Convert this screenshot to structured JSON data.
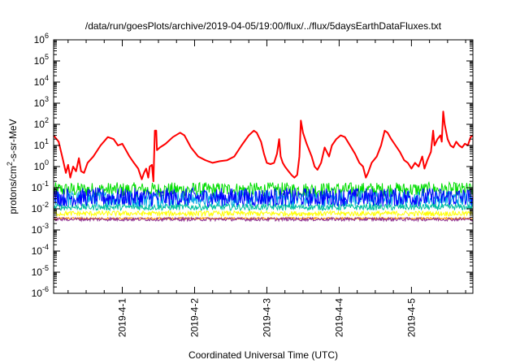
{
  "chart_data": {
    "type": "line",
    "title": "/data/run/goesPlots/archive/2019-04-05/19:00/flux/../flux/5daysEarthDataFluxes.txt",
    "xlabel": "Coordinated Universal Time (UTC)",
    "ylabel_base": "protons/cm",
    "ylabel_sup": "2",
    "ylabel_rest": "-s-sr-MeV",
    "log_y": true,
    "grid": false,
    "legend": "none",
    "xlim_days": [
      -0.95,
      4.85
    ],
    "ylim": [
      1e-06,
      1000000.0
    ],
    "x_ticks": [
      {
        "day": 0,
        "label": "2019-4-1"
      },
      {
        "day": 1,
        "label": "2019-4-2"
      },
      {
        "day": 2,
        "label": "2019-4-3"
      },
      {
        "day": 3,
        "label": "2019-4-4"
      },
      {
        "day": 4,
        "label": "2019-4-5"
      }
    ],
    "y_ticks": [
      {
        "exp": -6,
        "label": "10",
        "sup": "-6"
      },
      {
        "exp": -5,
        "label": "10",
        "sup": "-5"
      },
      {
        "exp": -4,
        "label": "10",
        "sup": "-4"
      },
      {
        "exp": -3,
        "label": "10",
        "sup": "-3"
      },
      {
        "exp": -2,
        "label": "10",
        "sup": "-2"
      },
      {
        "exp": -1,
        "label": "10",
        "sup": "-1"
      },
      {
        "exp": 0,
        "label": "10",
        "sup": "0"
      },
      {
        "exp": 1,
        "label": "10",
        "sup": "1"
      },
      {
        "exp": 2,
        "label": "10",
        "sup": "2"
      },
      {
        "exp": 3,
        "label": "10",
        "sup": "3"
      },
      {
        "exp": 4,
        "label": "10",
        "sup": "4"
      },
      {
        "exp": 5,
        "label": "10",
        "sup": "5"
      },
      {
        "exp": 6,
        "label": "10",
        "sup": "6"
      }
    ],
    "series": [
      {
        "color": "#00dd00",
        "kind": "noisy",
        "center": 0.08,
        "spread_decades": 0.35
      },
      {
        "color": "#00a6e6",
        "kind": "noisy",
        "center": 0.03,
        "spread_decades": 0.4
      },
      {
        "color": "#0000ff",
        "kind": "noisy",
        "center": 0.035,
        "spread_decades": 0.45
      },
      {
        "color": "#00c0a0",
        "kind": "noisy",
        "center": 0.012,
        "spread_decades": 0.15
      },
      {
        "color": "#ffff00",
        "kind": "noisy",
        "center": 0.006,
        "spread_decades": 0.12
      },
      {
        "color": "#ff9900",
        "kind": "noisy",
        "center": 0.0035,
        "spread_decades": 0.05
      },
      {
        "color": "#8e2a8e",
        "kind": "noisy",
        "center": 0.0032,
        "spread_decades": 0.08
      },
      {
        "color": "#ff0000",
        "kind": "line",
        "points": [
          [
            -0.95,
            30
          ],
          [
            -0.88,
            15
          ],
          [
            -0.82,
            2
          ],
          [
            -0.78,
            0.5
          ],
          [
            -0.75,
            1.2
          ],
          [
            -0.72,
            0.3
          ],
          [
            -0.68,
            1.0
          ],
          [
            -0.64,
            0.6
          ],
          [
            -0.6,
            2.5
          ],
          [
            -0.57,
            0.6
          ],
          [
            -0.53,
            0.5
          ],
          [
            -0.48,
            1.5
          ],
          [
            -0.4,
            3
          ],
          [
            -0.3,
            10
          ],
          [
            -0.2,
            25
          ],
          [
            -0.12,
            20
          ],
          [
            -0.06,
            10
          ],
          [
            0.0,
            12
          ],
          [
            0.05,
            6
          ],
          [
            0.1,
            3
          ],
          [
            0.16,
            1.5
          ],
          [
            0.22,
            0.8
          ],
          [
            0.27,
            0.25
          ],
          [
            0.3,
            0.5
          ],
          [
            0.33,
            0.8
          ],
          [
            0.36,
            0.3
          ],
          [
            0.38,
            1.0
          ],
          [
            0.41,
            1.2
          ],
          [
            0.43,
            0.2
          ],
          [
            0.45,
            50
          ],
          [
            0.47,
            50
          ],
          [
            0.48,
            6
          ],
          [
            0.52,
            8
          ],
          [
            0.6,
            12
          ],
          [
            0.7,
            25
          ],
          [
            0.8,
            40
          ],
          [
            0.86,
            30
          ],
          [
            0.95,
            8
          ],
          [
            1.05,
            3
          ],
          [
            1.15,
            2
          ],
          [
            1.25,
            1.5
          ],
          [
            1.35,
            1.8
          ],
          [
            1.45,
            2
          ],
          [
            1.55,
            3
          ],
          [
            1.65,
            10
          ],
          [
            1.75,
            30
          ],
          [
            1.82,
            50
          ],
          [
            1.86,
            40
          ],
          [
            1.92,
            15
          ],
          [
            1.96,
            4
          ],
          [
            2.0,
            1.5
          ],
          [
            2.05,
            1.3
          ],
          [
            2.1,
            1.5
          ],
          [
            2.14,
            4
          ],
          [
            2.17,
            20
          ],
          [
            2.19,
            3
          ],
          [
            2.22,
            1.5
          ],
          [
            2.25,
            1
          ],
          [
            2.3,
            0.6
          ],
          [
            2.34,
            0.4
          ],
          [
            2.38,
            0.3
          ],
          [
            2.42,
            0.4
          ],
          [
            2.45,
            3
          ],
          [
            2.47,
            150
          ],
          [
            2.5,
            40
          ],
          [
            2.55,
            12
          ],
          [
            2.62,
            3
          ],
          [
            2.66,
            1
          ],
          [
            2.7,
            0.7
          ],
          [
            2.75,
            1.5
          ],
          [
            2.8,
            8
          ],
          [
            2.86,
            3
          ],
          [
            2.9,
            10
          ],
          [
            2.96,
            20
          ],
          [
            3.02,
            30
          ],
          [
            3.08,
            25
          ],
          [
            3.15,
            10
          ],
          [
            3.22,
            4
          ],
          [
            3.28,
            1.5
          ],
          [
            3.33,
            1.0
          ],
          [
            3.37,
            0.3
          ],
          [
            3.4,
            0.5
          ],
          [
            3.45,
            1.5
          ],
          [
            3.52,
            3
          ],
          [
            3.58,
            10
          ],
          [
            3.63,
            50
          ],
          [
            3.67,
            40
          ],
          [
            3.72,
            20
          ],
          [
            3.78,
            10
          ],
          [
            3.84,
            5
          ],
          [
            3.9,
            2
          ],
          [
            3.95,
            1.5
          ],
          [
            4.0,
            0.8
          ],
          [
            4.05,
            1.5
          ],
          [
            4.1,
            1.0
          ],
          [
            4.15,
            3
          ],
          [
            4.18,
            0.8
          ],
          [
            4.22,
            2
          ],
          [
            4.27,
            5
          ],
          [
            4.3,
            50
          ],
          [
            4.32,
            10
          ],
          [
            4.36,
            20
          ],
          [
            4.4,
            30
          ],
          [
            4.42,
            15
          ],
          [
            4.44,
            400
          ],
          [
            4.46,
            100
          ],
          [
            4.5,
            20
          ],
          [
            4.54,
            10
          ],
          [
            4.58,
            8
          ],
          [
            4.62,
            15
          ],
          [
            4.66,
            10
          ],
          [
            4.7,
            8
          ],
          [
            4.74,
            12
          ],
          [
            4.78,
            10
          ],
          [
            4.82,
            25
          ],
          [
            4.85,
            30
          ]
        ]
      }
    ]
  }
}
